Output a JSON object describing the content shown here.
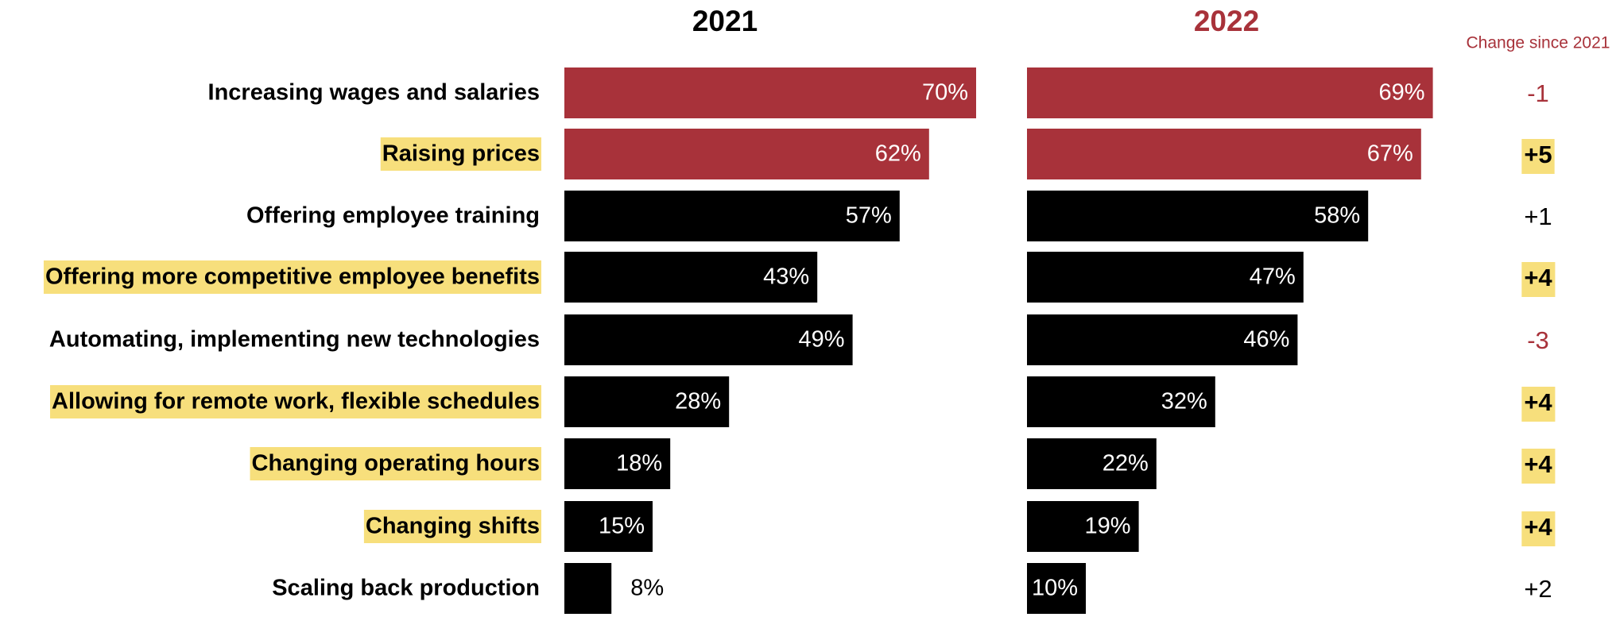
{
  "chart_data": {
    "type": "bar",
    "orientation": "horizontal",
    "categories": [
      "Increasing wages and salaries",
      "Raising prices",
      "Offering employee training",
      "Offering more competitive employee benefits",
      "Automating, implementing new technologies",
      "Allowing for remote work, flexible schedules",
      "Changing operating hours",
      "Changing shifts",
      "Scaling back production"
    ],
    "highlighted_categories": [
      "Raising prices",
      "Offering more competitive employee benefits",
      "Allowing for remote work, flexible schedules",
      "Changing operating hours",
      "Changing shifts"
    ],
    "series": [
      {
        "name": "2021",
        "values": [
          70,
          62,
          57,
          43,
          49,
          28,
          18,
          15,
          8
        ],
        "labels": [
          "70%",
          "62%",
          "57%",
          "43%",
          "49%",
          "28%",
          "18%",
          "15%",
          "8%"
        ]
      },
      {
        "name": "2022",
        "values": [
          69,
          67,
          58,
          47,
          46,
          32,
          22,
          19,
          10
        ],
        "labels": [
          "69%",
          "67%",
          "58%",
          "47%",
          "46%",
          "32%",
          "22%",
          "19%",
          "10%"
        ]
      }
    ],
    "change_header": "Change since 2021",
    "change_values": [
      "-1",
      "+5",
      "+1",
      "+4",
      "-3",
      "+4",
      "+4",
      "+4",
      "+2"
    ],
    "change_highlighted": [
      false,
      true,
      false,
      true,
      false,
      true,
      true,
      true,
      false
    ],
    "xlim": [
      0,
      70
    ],
    "grid": false,
    "legend": "none"
  },
  "colors": {
    "accent": "#A8323A",
    "bar_default": "#000000",
    "highlight": "#F7DF7C",
    "year_2021_title": "#000000",
    "year_2022_title": "#A8323A",
    "decrease": "#A8323A",
    "increase": "#000000"
  },
  "accent_bar_rows": [
    0,
    1
  ]
}
